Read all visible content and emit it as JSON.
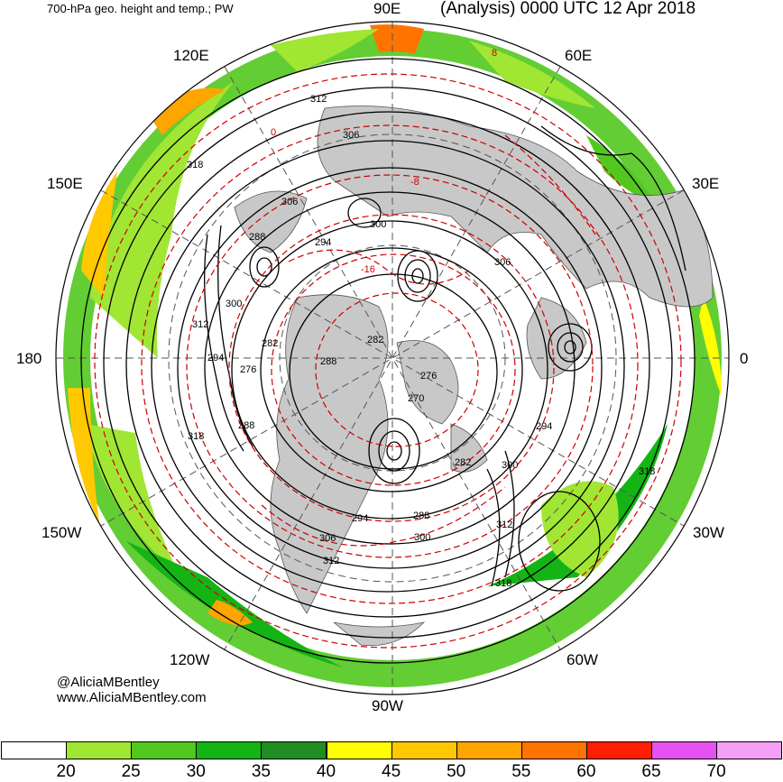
{
  "header": {
    "left_title": "700-hPa geo. height and temp.; PW",
    "right_title": "(Analysis) 0000 UTC 12 Apr 2018"
  },
  "longitude_labels": {
    "e90": "90E",
    "e120": "120E",
    "e60": "60E",
    "e150": "150E",
    "e30": "30E",
    "w180": "180",
    "zero": "0",
    "w150": "150W",
    "w30": "30W",
    "w120": "120W",
    "w60": "60W",
    "w90": "90W"
  },
  "credits": {
    "twitter": "@AliciaMBentley",
    "website": "www.AliciaMBentley.com"
  },
  "height_contour_labels": [
    "318",
    "312",
    "306",
    "306",
    "300",
    "294",
    "288",
    "300",
    "312",
    "294",
    "282",
    "276",
    "288",
    "282",
    "288",
    "282",
    "276",
    "270",
    "306",
    "294",
    "288",
    "300",
    "306",
    "312",
    "318",
    "294",
    "318",
    "300",
    "312",
    "318"
  ],
  "temp_contour_labels": [
    "-16",
    "-8",
    "0",
    "8"
  ],
  "colorbar": {
    "colors": [
      "#ffffff",
      "#a0e633",
      "#52c81e",
      "#14b414",
      "#218c21",
      "#ffff00",
      "#ffc800",
      "#ffa500",
      "#ff7300",
      "#ff1e00",
      "#e650f0",
      "#f5a0f5"
    ],
    "labels": [
      "20",
      "25",
      "30",
      "35",
      "40",
      "45",
      "50",
      "55",
      "60",
      "65",
      "70"
    ]
  },
  "map": {
    "land_color": "#c8c8c8",
    "ocean_color": "#ffffff",
    "height_contour_color": "#000000",
    "temp_contour_color": "#cc0000"
  }
}
